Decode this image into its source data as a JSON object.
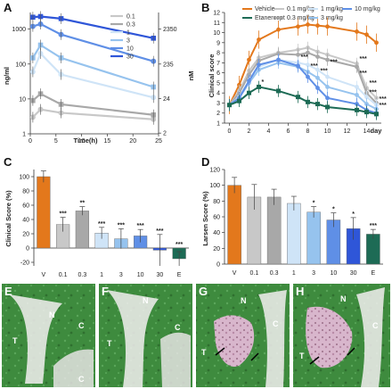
{
  "panels": {
    "A": "A",
    "B": "B",
    "C": "C",
    "D": "D",
    "E": "E",
    "F": "F",
    "G": "G",
    "H": "H"
  },
  "histology": {
    "E": {
      "labels": [
        "N",
        "T",
        "C",
        "C"
      ]
    },
    "F": {
      "labels": [
        "N",
        "T",
        "C"
      ]
    },
    "G": {
      "labels": [
        "N",
        "T",
        "C"
      ]
    },
    "H": {
      "labels": [
        "N",
        "T",
        "C"
      ]
    }
  },
  "colors": {
    "c01": "#c8c8c8",
    "c03": "#a8a8a8",
    "c1": "#cfe4f7",
    "c3": "#96c3ee",
    "c10": "#5f8fe6",
    "c30": "#2f56d8",
    "vehicle": "#e3781c",
    "etanercept": "#1d6b55"
  },
  "chart_data": [
    {
      "panel": "A",
      "type": "line",
      "xlabel": "Time(h)",
      "ylabel": "ng/ml",
      "ylabel_right": "nM",
      "x_ticks": [
        "0",
        "5",
        "10",
        "15",
        "20",
        "25"
      ],
      "y_ticks": [
        "1",
        "10",
        "100",
        "1000"
      ],
      "right_ticks": [
        "2350",
        "235",
        "24",
        "2"
      ],
      "y_scale": "log",
      "xlim": [
        0,
        25
      ],
      "ylim": [
        1,
        3000
      ],
      "legend": [
        "0.1",
        "0.3",
        "1",
        "3",
        "10",
        "30"
      ],
      "series": [
        {
          "name": "0.1",
          "color": "#c8c8c8",
          "x": [
            0.5,
            2,
            6,
            24
          ],
          "y": [
            3,
            5,
            4,
            2.6
          ]
        },
        {
          "name": "0.3",
          "color": "#a8a8a8",
          "x": [
            0.5,
            2,
            6,
            24
          ],
          "y": [
            9,
            14,
            7,
            3.5
          ]
        },
        {
          "name": "1",
          "color": "#cfe4f7",
          "x": [
            0.5,
            2,
            6,
            24
          ],
          "y": [
            60,
            200,
            50,
            11
          ]
        },
        {
          "name": "3",
          "color": "#96c3ee",
          "x": [
            0.5,
            2,
            6,
            24
          ],
          "y": [
            150,
            350,
            150,
            22
          ]
        },
        {
          "name": "10",
          "color": "#5f8fe6",
          "x": [
            0.5,
            2,
            6,
            24
          ],
          "y": [
            1200,
            1400,
            700,
            120
          ]
        },
        {
          "name": "30",
          "color": "#2f56d8",
          "x": [
            0.5,
            2,
            6,
            24
          ],
          "y": [
            2200,
            2300,
            2000,
            550
          ]
        }
      ]
    },
    {
      "panel": "B",
      "type": "line",
      "ylabel": "Clinical score",
      "xlabel": "day",
      "x_ticks": [
        "0",
        "2",
        "4",
        "6",
        "8",
        "10",
        "12",
        "14"
      ],
      "y_ticks": [
        "1",
        "2",
        "3",
        "4",
        "5",
        "6",
        "7",
        "8",
        "9",
        "10",
        "11",
        "12"
      ],
      "xlim": [
        -0.5,
        15.5
      ],
      "ylim": [
        1,
        12
      ],
      "legend": [
        "Vehicle",
        "0.1 mg/kg",
        "1 mg/kg",
        "10 mg/kg",
        "Etanercept",
        "0.3 mg/kg",
        "3 mg/kg"
      ],
      "x": [
        0,
        1,
        2,
        3,
        5,
        7,
        8,
        9,
        10,
        13,
        14,
        15
      ],
      "series": [
        {
          "name": "Vehicle",
          "color": "#e3781c",
          "y": [
            2.8,
            4.8,
            7.3,
            9.3,
            10.3,
            10.6,
            10.8,
            10.7,
            10.6,
            10.1,
            9.8,
            9.0
          ]
        },
        {
          "name": "0.1 mg/kg",
          "color": "#c8c8c8",
          "y": [
            2.8,
            4.2,
            6.2,
            7.5,
            8.0,
            8.3,
            8.5,
            8.1,
            7.8,
            6.9,
            4.5,
            3.5
          ]
        },
        {
          "name": "0.3 mg/kg",
          "color": "#a8a8a8",
          "y": [
            2.8,
            4.0,
            5.8,
            7.2,
            7.9,
            7.8,
            8.0,
            7.6,
            7.3,
            6.6,
            4.0,
            3.0
          ]
        },
        {
          "name": "1 mg/kg",
          "color": "#cfe4f7",
          "y": [
            2.8,
            3.6,
            5.2,
            6.6,
            7.3,
            7.0,
            6.8,
            6.3,
            5.6,
            4.6,
            3.6,
            2.8
          ]
        },
        {
          "name": "3 mg/kg",
          "color": "#96c3ee",
          "y": [
            2.8,
            3.5,
            5.0,
            6.3,
            7.0,
            6.6,
            6.1,
            5.5,
            4.6,
            3.8,
            2.9,
            2.4
          ]
        },
        {
          "name": "10 mg/kg",
          "color": "#5f8fe6",
          "y": [
            2.8,
            3.5,
            5.2,
            6.8,
            7.3,
            6.7,
            5.6,
            4.5,
            3.5,
            2.9,
            2.3,
            2.0
          ]
        },
        {
          "name": "Etanercept",
          "color": "#1d6b55",
          "y": [
            2.8,
            3.2,
            4.0,
            4.6,
            4.2,
            3.6,
            3.1,
            2.9,
            2.6,
            2.3,
            2.1,
            1.9
          ]
        }
      ],
      "significance": [
        "*",
        "***",
        "***",
        "***",
        "***",
        "***",
        "***",
        "***",
        "***",
        "***",
        "***"
      ]
    },
    {
      "panel": "C",
      "type": "bar",
      "ylabel": "Clinical Score (%)",
      "categories": [
        "V",
        "0.1",
        "0.3",
        "1",
        "3",
        "10",
        "30",
        "E"
      ],
      "values": [
        100,
        33,
        52,
        21,
        13,
        17,
        -3,
        -15
      ],
      "errors": [
        8,
        10,
        6,
        8,
        14,
        9,
        22,
        10
      ],
      "stars": [
        "",
        "***",
        "**",
        "***",
        "***",
        "***",
        "***",
        "***"
      ],
      "y_ticks": [
        "-20",
        "0",
        "20",
        "40",
        "60",
        "80",
        "100"
      ],
      "ylim": [
        -25,
        110
      ]
    },
    {
      "panel": "D",
      "type": "bar",
      "ylabel": "Larsen Score (%)",
      "categories": [
        "V",
        "0.1",
        "0.3",
        "1",
        "3",
        "10",
        "30",
        "E"
      ],
      "values": [
        100,
        85,
        85,
        77,
        66,
        56,
        45,
        38
      ],
      "errors": [
        10,
        16,
        10,
        9,
        7,
        9,
        14,
        6
      ],
      "stars": [
        "",
        "",
        "",
        "",
        "*",
        "*",
        "*",
        "***"
      ],
      "y_ticks": [
        "0",
        "20",
        "40",
        "60",
        "80",
        "100",
        "120"
      ],
      "ylim": [
        0,
        120
      ]
    }
  ]
}
